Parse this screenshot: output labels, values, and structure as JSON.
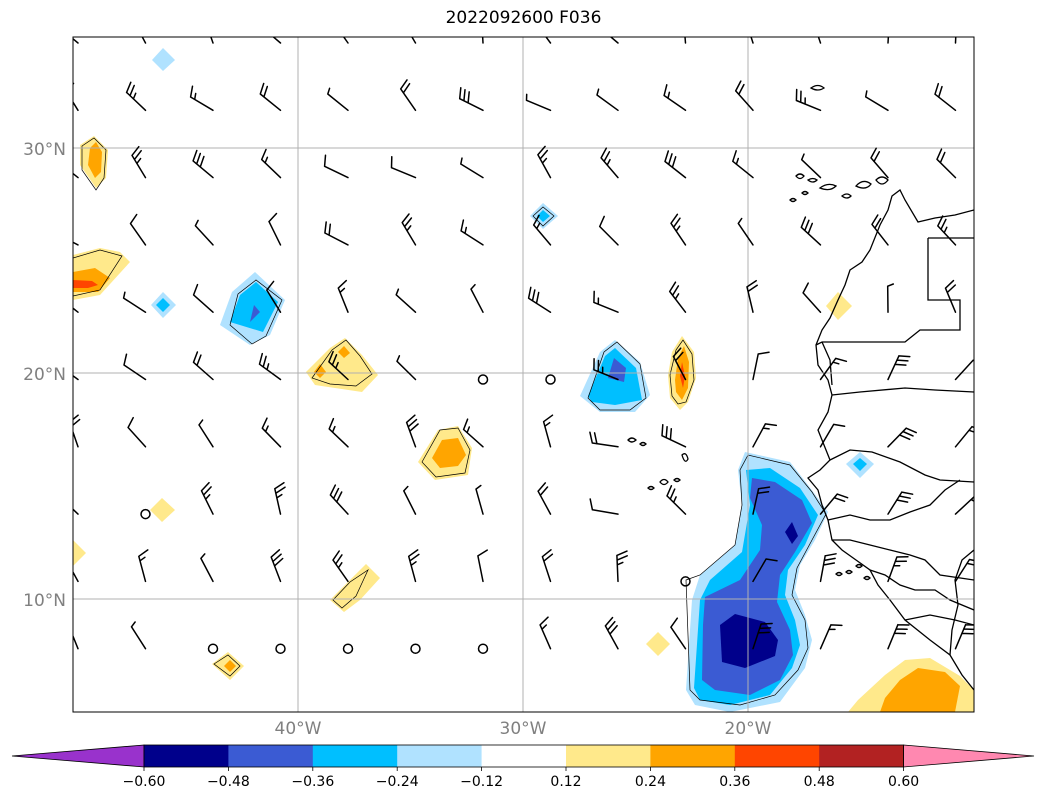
{
  "title": "2022092600 F036",
  "map": {
    "lat_labels": [
      "30°N",
      "20°N",
      "10°N"
    ],
    "lon_labels": [
      "40°W",
      "30°W",
      "20°W"
    ],
    "label_color": "#808080",
    "grid_color": "#b0b0b0",
    "coastline_color": "#000000",
    "barb_color": "#000000"
  },
  "colorbar": {
    "extend": "both",
    "colors": [
      "#9932cc",
      "#00008b",
      "#3b5bd3",
      "#00bfff",
      "#b0e2ff",
      "#ffffff",
      "#ffe98b",
      "#ffa500",
      "#ff4500",
      "#b22222",
      "#ff88b0"
    ],
    "tick_labels": [
      "−0.60",
      "−0.48",
      "−0.36",
      "−0.24",
      "−0.12",
      "0.12",
      "0.24",
      "0.36",
      "0.48",
      "0.60"
    ]
  },
  "fill_colors": {
    "pos_1": "#ffe98b",
    "pos_2": "#ffa500",
    "pos_3": "#ff4500",
    "neg_1": "#b0e2ff",
    "neg_2": "#00bfff",
    "neg_3": "#3b5bd3",
    "neg_4": "#00008b"
  }
}
